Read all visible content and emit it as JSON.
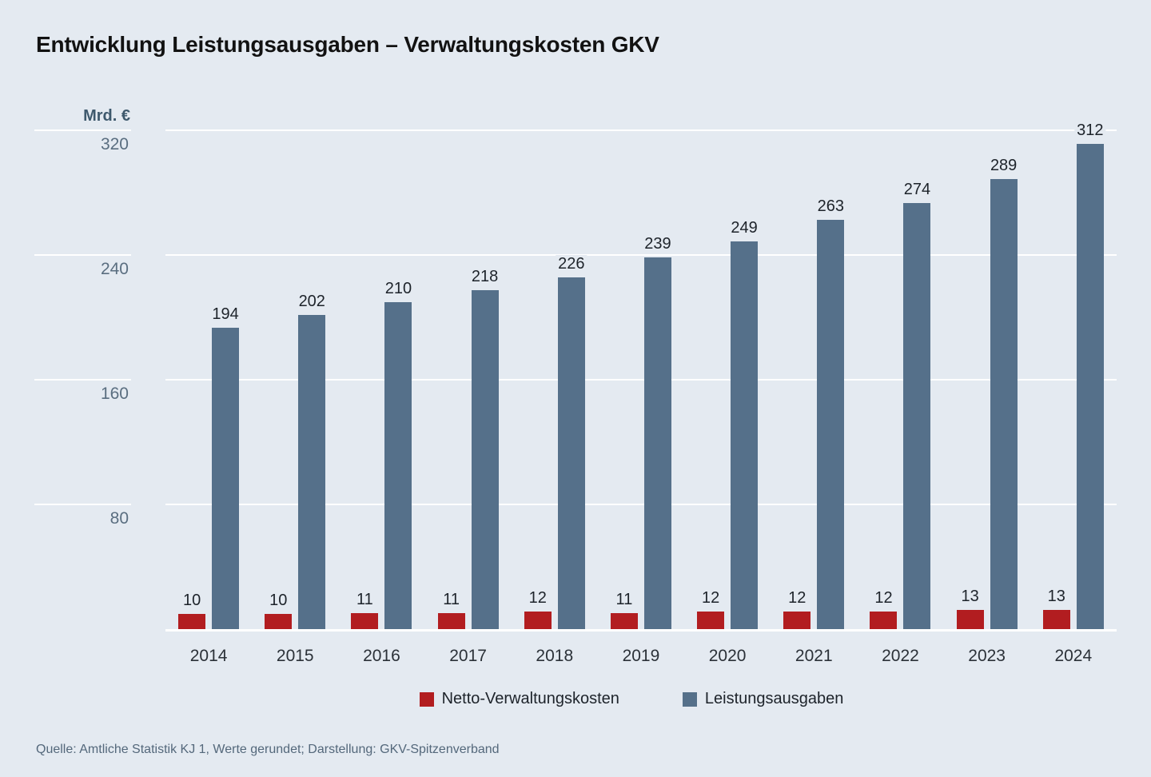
{
  "title": "Entwicklung Leistungsausgaben – Verwaltungskosten GKV",
  "y_axis": {
    "unit_label": "Mrd. €",
    "tick_labels": [
      "320",
      "240",
      "160",
      "80"
    ]
  },
  "chart_data": {
    "type": "bar",
    "title": "Entwicklung Leistungsausgaben – Verwaltungskosten GKV",
    "ylabel": "Mrd. €",
    "ylim": [
      0,
      320
    ],
    "yticks": [
      320,
      240,
      160,
      80
    ],
    "grid": true,
    "legend_position": "bottom",
    "categories": [
      "2014",
      "2015",
      "2016",
      "2017",
      "2018",
      "2019",
      "2020",
      "2021",
      "2022",
      "2023",
      "2024"
    ],
    "series": [
      {
        "name": "Netto-Verwaltungskosten",
        "color": "#b21d20",
        "values": [
          10,
          10,
          11,
          11,
          12,
          11,
          12,
          12,
          12,
          13,
          13
        ]
      },
      {
        "name": "Leistungsausgaben",
        "color": "#55708a",
        "values": [
          194,
          202,
          210,
          218,
          226,
          239,
          249,
          263,
          274,
          289,
          312
        ]
      }
    ]
  },
  "footer": {
    "source": "Quelle: Amtliche Statistik KJ 1, Werte gerundet; Darstellung: GKV-Spitzenverband"
  },
  "colors": {
    "background": "#e4eaf1",
    "gridline": "#ffffff",
    "tick_label": "#5a6e80",
    "unit_label": "#3e596d",
    "value_label": "#1d232a",
    "category_label": "#2b3138",
    "title": "#121212",
    "source": "#54687b"
  }
}
